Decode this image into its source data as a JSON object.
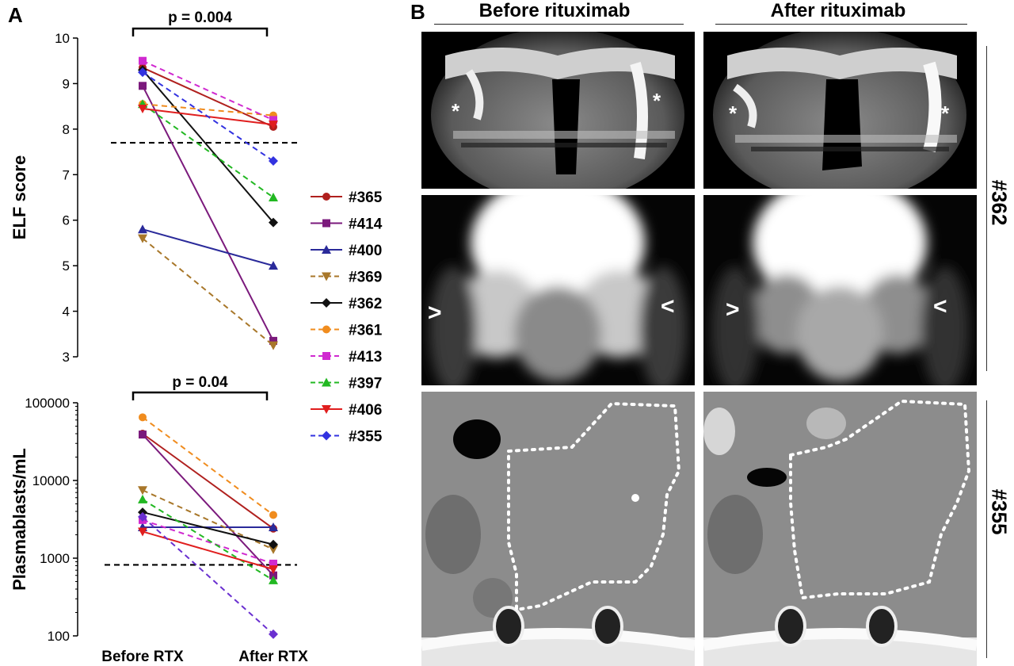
{
  "panels": {
    "a_label": "A",
    "b_label": "B"
  },
  "chart_data": [
    {
      "type": "line",
      "ylabel": "ELF score",
      "yscale": "linear",
      "ylim": [
        3,
        10
      ],
      "yticks": [
        "3",
        "4",
        "5",
        "6",
        "7",
        "8",
        "9",
        "10"
      ],
      "categories": [
        "Before RTX",
        "After RTX"
      ],
      "threshold": 7.7,
      "significance": "p = 0.004",
      "series": [
        {
          "name": "#365",
          "color": "#b0201e",
          "marker": "circle",
          "dash": false,
          "values": [
            9.35,
            8.05
          ]
        },
        {
          "name": "#414",
          "color": "#7b1a7c",
          "marker": "square",
          "dash": false,
          "values": [
            8.95,
            3.35
          ]
        },
        {
          "name": "#400",
          "color": "#2a2a9a",
          "marker": "triangle",
          "dash": false,
          "values": [
            5.8,
            5.0
          ]
        },
        {
          "name": "#369",
          "color": "#a8772a",
          "marker": "triangle-down",
          "dash": true,
          "values": [
            5.6,
            3.25
          ]
        },
        {
          "name": "#362",
          "color": "#111111",
          "marker": "diamond",
          "dash": false,
          "values": [
            9.3,
            5.95
          ]
        },
        {
          "name": "#361",
          "color": "#f08c1e",
          "marker": "circle",
          "dash": true,
          "values": [
            8.55,
            8.3
          ]
        },
        {
          "name": "#413",
          "color": "#d02ad0",
          "marker": "square",
          "dash": true,
          "values": [
            9.5,
            8.2
          ]
        },
        {
          "name": "#397",
          "color": "#22b822",
          "marker": "triangle",
          "dash": true,
          "values": [
            8.55,
            6.5
          ]
        },
        {
          "name": "#406",
          "color": "#e01e1e",
          "marker": "triangle-down",
          "dash": false,
          "values": [
            8.45,
            8.1
          ]
        },
        {
          "name": "#355",
          "color": "#3232e0",
          "marker": "diamond",
          "dash": true,
          "values": [
            9.25,
            7.3
          ]
        }
      ]
    },
    {
      "type": "line",
      "ylabel": "Plasmablasts/mL",
      "yscale": "log",
      "ylim": [
        100,
        100000
      ],
      "yticks": [
        "100",
        "1000",
        "10000",
        "100000"
      ],
      "categories": [
        "Before RTX",
        "After RTX"
      ],
      "threshold": 820,
      "significance": "p = 0.04",
      "series": [
        {
          "name": "#365",
          "color": "#b0201e",
          "marker": "circle",
          "dash": false,
          "values": [
            40000,
            2400
          ]
        },
        {
          "name": "#414",
          "color": "#7b1a7c",
          "marker": "square",
          "dash": false,
          "values": [
            39000,
            600
          ]
        },
        {
          "name": "#400",
          "color": "#2a2a9a",
          "marker": "triangle",
          "dash": false,
          "values": [
            2500,
            2500
          ]
        },
        {
          "name": "#369",
          "color": "#a8772a",
          "marker": "triangle-down",
          "dash": true,
          "values": [
            7500,
            1300
          ]
        },
        {
          "name": "#362",
          "color": "#111111",
          "marker": "diamond",
          "dash": false,
          "values": [
            3900,
            1500
          ]
        },
        {
          "name": "#361",
          "color": "#f08c1e",
          "marker": "circle",
          "dash": true,
          "values": [
            65000,
            3600
          ]
        },
        {
          "name": "#413",
          "color": "#d02ad0",
          "marker": "square",
          "dash": true,
          "values": [
            3100,
            850
          ]
        },
        {
          "name": "#397",
          "color": "#22b822",
          "marker": "triangle",
          "dash": true,
          "values": [
            5700,
            520
          ]
        },
        {
          "name": "#406",
          "color": "#e01e1e",
          "marker": "triangle-down",
          "dash": false,
          "values": [
            2200,
            720
          ]
        },
        {
          "name": "#355",
          "color": "#6a30d0",
          "marker": "diamond",
          "dash": true,
          "values": [
            3400,
            105
          ]
        }
      ]
    }
  ],
  "images": {
    "col_before": "Before rituximab",
    "col_after": "After rituximab",
    "case_top": "#362",
    "case_bottom": "#355",
    "asterisk": "*",
    "chevron_left": ">",
    "chevron_right": "<"
  }
}
